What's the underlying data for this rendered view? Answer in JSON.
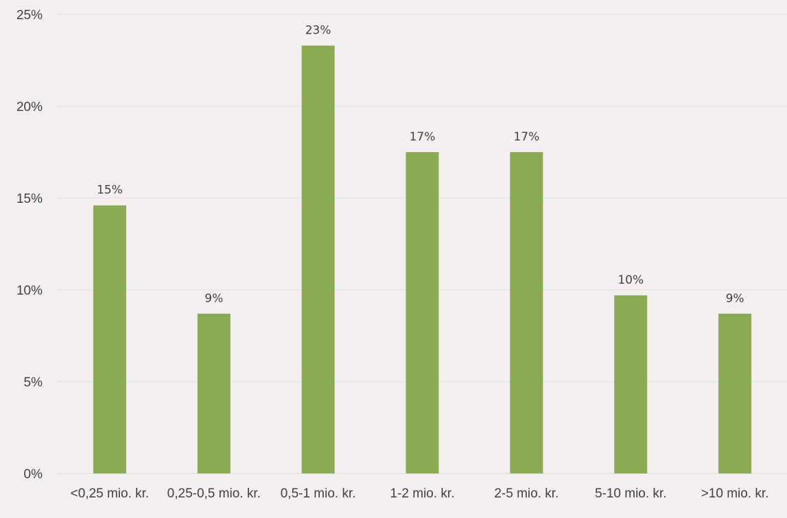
{
  "chart_data": {
    "type": "bar",
    "title": "",
    "xlabel": "",
    "ylabel": "",
    "categories": [
      "<0,25 mio. kr.",
      "0,25-0,5 mio. kr.",
      "0,5-1 mio. kr.",
      "1-2 mio. kr.",
      "2-5 mio. kr.",
      "5-10 mio. kr.",
      ">10 mio. kr."
    ],
    "values": [
      14.6,
      8.7,
      23.3,
      17.5,
      17.5,
      9.7,
      8.7
    ],
    "data_labels": [
      "15%",
      "9%",
      "23%",
      "17%",
      "17%",
      "10%",
      "9%"
    ],
    "y_ticks": [
      0,
      5,
      10,
      15,
      20,
      25
    ],
    "y_tick_labels": [
      "0%",
      "5%",
      "10%",
      "15%",
      "20%",
      "25%"
    ],
    "ylim": [
      0,
      25
    ],
    "grid": true,
    "legend": "none",
    "bar_color": "#8aaa56",
    "background_color": "#f2efee"
  }
}
